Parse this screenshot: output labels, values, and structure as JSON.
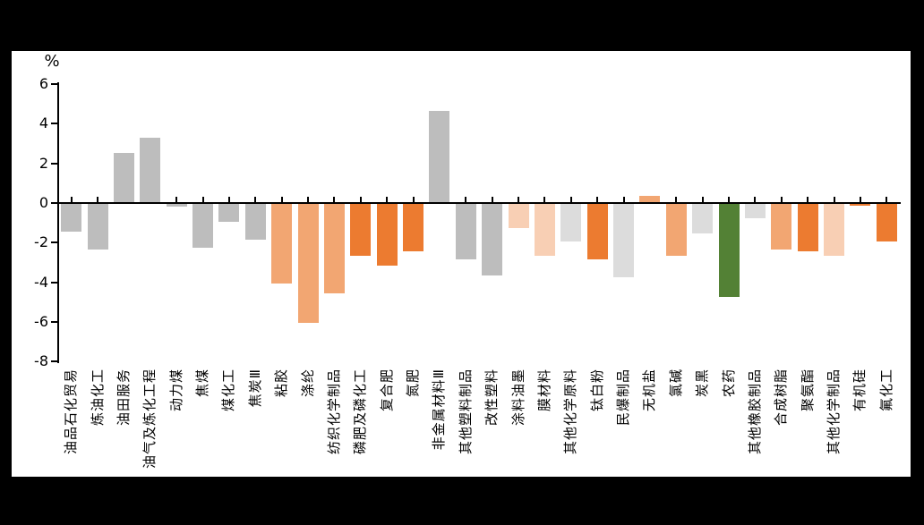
{
  "chart_data": {
    "type": "bar",
    "title": "",
    "unit_label": "%",
    "ylim": [
      -8,
      6
    ],
    "y_ticks": [
      6,
      4,
      2,
      0,
      -2,
      -4,
      -6,
      -8
    ],
    "grid": false,
    "legend_position": "none",
    "categories": [
      "油品石化贸易",
      "炼油化工",
      "油田服务",
      "油气及炼化工程",
      "动力煤",
      "焦煤",
      "煤化工",
      "焦炭Ⅲ",
      "粘胶",
      "涤纶",
      "纺织化学制品",
      "磷肥及磷化工",
      "复合肥",
      "氮肥",
      "非金属材料Ⅲ",
      "其他塑料制品",
      "改性塑料",
      "涂料油墨",
      "膜材料",
      "其他化学原料",
      "钛白粉",
      "民爆制品",
      "无机盐",
      "氯碱",
      "炭黑",
      "农药",
      "其他橡胶制品",
      "合成树脂",
      "聚氨酯",
      "其他化学制品",
      "有机硅",
      "氟化工"
    ],
    "values": [
      -1.4,
      -2.3,
      2.55,
      3.3,
      -0.15,
      -2.2,
      -0.9,
      -1.8,
      -4.0,
      -6.0,
      -4.5,
      -2.6,
      -3.1,
      -2.4,
      4.65,
      -2.8,
      -3.6,
      -1.2,
      -2.6,
      -1.9,
      -2.8,
      -3.7,
      0.35,
      -2.6,
      -1.5,
      -4.7,
      -0.7,
      -2.3,
      -2.4,
      -2.6,
      -0.07,
      -1.9
    ],
    "bar_colors": [
      "#BDBDBD",
      "#BDBDBD",
      "#BDBDBD",
      "#BDBDBD",
      "#BDBDBD",
      "#BDBDBD",
      "#BDBDBD",
      "#BDBDBD",
      "#F2A672",
      "#F2A672",
      "#F2A672",
      "#EC7B30",
      "#EC7B30",
      "#EC7B30",
      "#BDBDBD",
      "#BDBDBD",
      "#BDBDBD",
      "#F8CFB4",
      "#F8CFB4",
      "#DCDCDC",
      "#EC7B30",
      "#DCDCDC",
      "#F2A672",
      "#F2A672",
      "#DCDCDC",
      "#538135",
      "#DCDCDC",
      "#F2A672",
      "#EC7B30",
      "#F8CFB4",
      "#EC7B30",
      "#EC7B30"
    ],
    "palette": {
      "gray": "#BDBDBD",
      "light_gray": "#DCDCDC",
      "orange_medium": "#F2A672",
      "orange_dark": "#EC7B30",
      "orange_pale": "#F8CFB4",
      "green": "#538135",
      "axis": "#000000",
      "panel_background": "#FFFFFF",
      "outer_background": "#000000"
    }
  }
}
